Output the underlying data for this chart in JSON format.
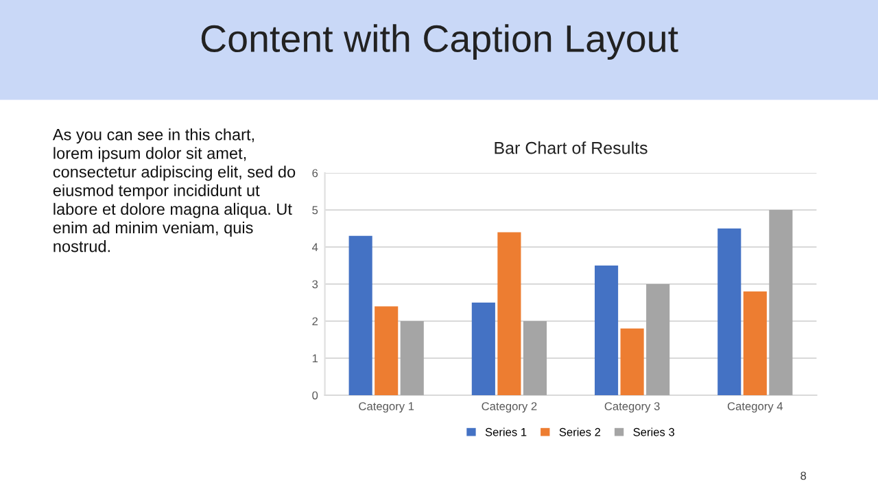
{
  "chart_data": {
    "type": "bar",
    "title": "Bar Chart of Results",
    "categories": [
      "Category 1",
      "Category 2",
      "Category 3",
      "Category 4"
    ],
    "series": [
      {
        "name": "Series 1",
        "color": "#4472c4",
        "values": [
          4.3,
          2.5,
          3.5,
          4.5
        ]
      },
      {
        "name": "Series 2",
        "color": "#ed7d31",
        "values": [
          2.4,
          4.4,
          1.8,
          2.8
        ]
      },
      {
        "name": "Series 3",
        "color": "#a5a5a5",
        "values": [
          2,
          2,
          3,
          5
        ]
      }
    ],
    "ylim": [
      0,
      6
    ],
    "yticks": [
      0,
      1,
      2,
      3,
      4,
      5,
      6
    ],
    "grid": "y",
    "legend": "bottom",
    "annotations": [
      "Content with Caption Layout",
      "As you can see in this chart, lorem ipsum dolor sit amet, consectetur adipiscing elit, sed do eiusmod tempor incididunt ut labore et dolore magna aliqua. Ut enim ad minim veniam, quis nostrud.",
      "8"
    ]
  }
}
